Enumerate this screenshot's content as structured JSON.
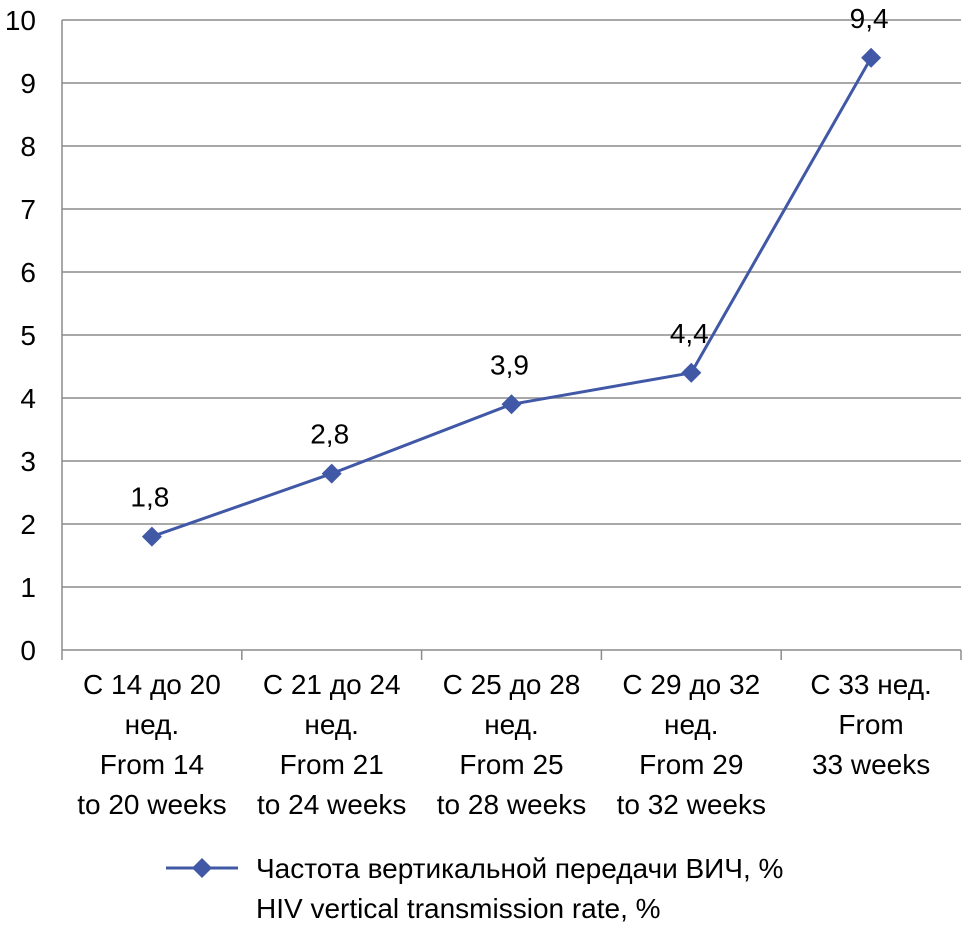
{
  "chart_data": {
    "type": "line",
    "categories": [
      [
        "С 14 до 20",
        "нед.",
        "From 14",
        "to 20 weeks"
      ],
      [
        "С 21 до 24",
        "нед.",
        "From 21",
        "to 24 weeks"
      ],
      [
        "С 25 до 28",
        "нед.",
        "From 25",
        "to 28 weeks"
      ],
      [
        "С 29 до 32",
        "нед.",
        "From 29",
        "to 32 weeks"
      ],
      [
        "С 33 нед.",
        "From",
        "33 weeks"
      ]
    ],
    "series": [
      {
        "name": [
          "Частота вертикальной передачи ВИЧ, %",
          "HIV vertical transmission rate, %"
        ],
        "values": [
          1.8,
          2.8,
          3.9,
          4.4,
          9.4
        ],
        "data_labels": [
          "1,8",
          "2,8",
          "3,9",
          "4,4",
          "9,4"
        ]
      }
    ],
    "ylim": [
      0,
      10
    ],
    "yticks": [
      0,
      1,
      2,
      3,
      4,
      5,
      6,
      7,
      8,
      9,
      10
    ],
    "grid": true,
    "legend_position": "bottom",
    "colors": {
      "series": "#4158A6",
      "grid": "#8C8C8C",
      "axis": "#8C8C8C"
    }
  }
}
